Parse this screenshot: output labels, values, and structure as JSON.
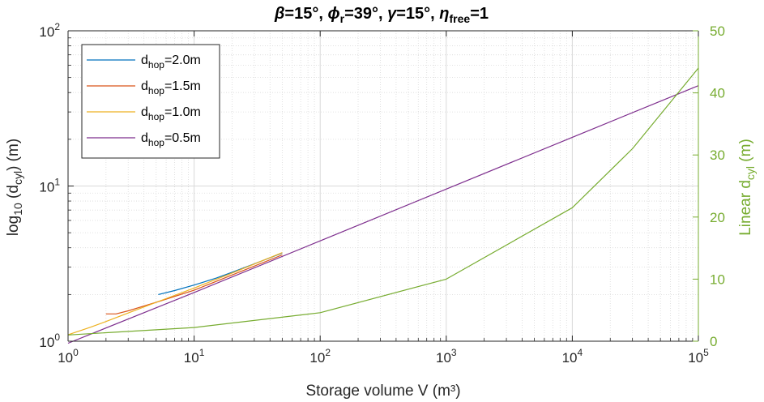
{
  "chart_data": {
    "type": "line",
    "title": {
      "beta": "β",
      "beta_val": "=15°, ",
      "phi": "ϕ",
      "phi_sub": "r",
      "phi_val": "=39°, ",
      "gamma": "γ",
      "gamma_val": "=15°, ",
      "eta": "η",
      "eta_sub": "free",
      "eta_val": "=1"
    },
    "xlabel": "Storage volume V (m³)",
    "ylabel_left": {
      "pre": "log",
      "sub1": "10",
      "mid": " (d",
      "sub2": "cyl",
      "post": ") (m)"
    },
    "ylabel_right": {
      "pre": "Linear d",
      "sub": "cyl",
      "post": " (m)"
    },
    "x_scale": "log",
    "y_left_scale": "log",
    "xlim": [
      1,
      100000
    ],
    "ylim_left": [
      1,
      100
    ],
    "ylim_right": [
      0,
      50
    ],
    "grid": true,
    "legend_position": "top-left",
    "x_ticks": [
      {
        "base": "10",
        "exp": "0"
      },
      {
        "base": "10",
        "exp": "1"
      },
      {
        "base": "10",
        "exp": "2"
      },
      {
        "base": "10",
        "exp": "3"
      },
      {
        "base": "10",
        "exp": "4"
      },
      {
        "base": "10",
        "exp": "5"
      }
    ],
    "y_left_ticks": [
      {
        "base": "10",
        "exp": "0"
      },
      {
        "base": "10",
        "exp": "1"
      },
      {
        "base": "10",
        "exp": "2"
      }
    ],
    "y_right_ticks": [
      "0",
      "10",
      "20",
      "30",
      "40",
      "50"
    ],
    "colors": {
      "right_axis": "#77AC30",
      "axis": "#262626",
      "grid": "#d9d9d9"
    },
    "series": [
      {
        "name": {
          "pre": "d",
          "sub": "hop",
          "post": "=2.0m"
        },
        "color": "#0072BD",
        "axis": "left",
        "x": [
          5.2,
          7,
          10,
          15,
          20,
          30,
          50
        ],
        "y": [
          2.0,
          2.12,
          2.3,
          2.55,
          2.78,
          3.15,
          3.7
        ]
      },
      {
        "name": {
          "pre": "d",
          "sub": "hop",
          "post": "=1.5m"
        },
        "color": "#D95319",
        "axis": "left",
        "x": [
          2.0,
          2.4,
          3,
          5,
          10,
          20,
          50
        ],
        "y": [
          1.5,
          1.5,
          1.57,
          1.78,
          2.13,
          2.67,
          3.6
        ]
      },
      {
        "name": {
          "pre": "d",
          "sub": "hop",
          "post": "=1.0m"
        },
        "color": "#EDB120",
        "axis": "left",
        "x": [
          1.0,
          1.5,
          2,
          3,
          5,
          10,
          20,
          50
        ],
        "y": [
          1.1,
          1.23,
          1.34,
          1.52,
          1.78,
          2.2,
          2.75,
          3.72
        ]
      },
      {
        "name": {
          "pre": "d",
          "sub": "hop",
          "post": "=0.5m"
        },
        "color": "#7E2F8E",
        "axis": "left",
        "x": [
          1,
          10,
          100,
          1000,
          10000,
          100000
        ],
        "y": [
          0.97,
          2.06,
          4.43,
          9.55,
          20.6,
          44.3
        ]
      },
      {
        "name": {
          "pre": "",
          "sub": "",
          "post": ""
        },
        "color": "#77AC30",
        "axis": "right",
        "x": [
          1,
          10,
          100,
          1000,
          10000,
          30000,
          100000
        ],
        "y": [
          1.0,
          2.2,
          4.6,
          10.0,
          21.5,
          31.0,
          44.0
        ]
      }
    ]
  }
}
